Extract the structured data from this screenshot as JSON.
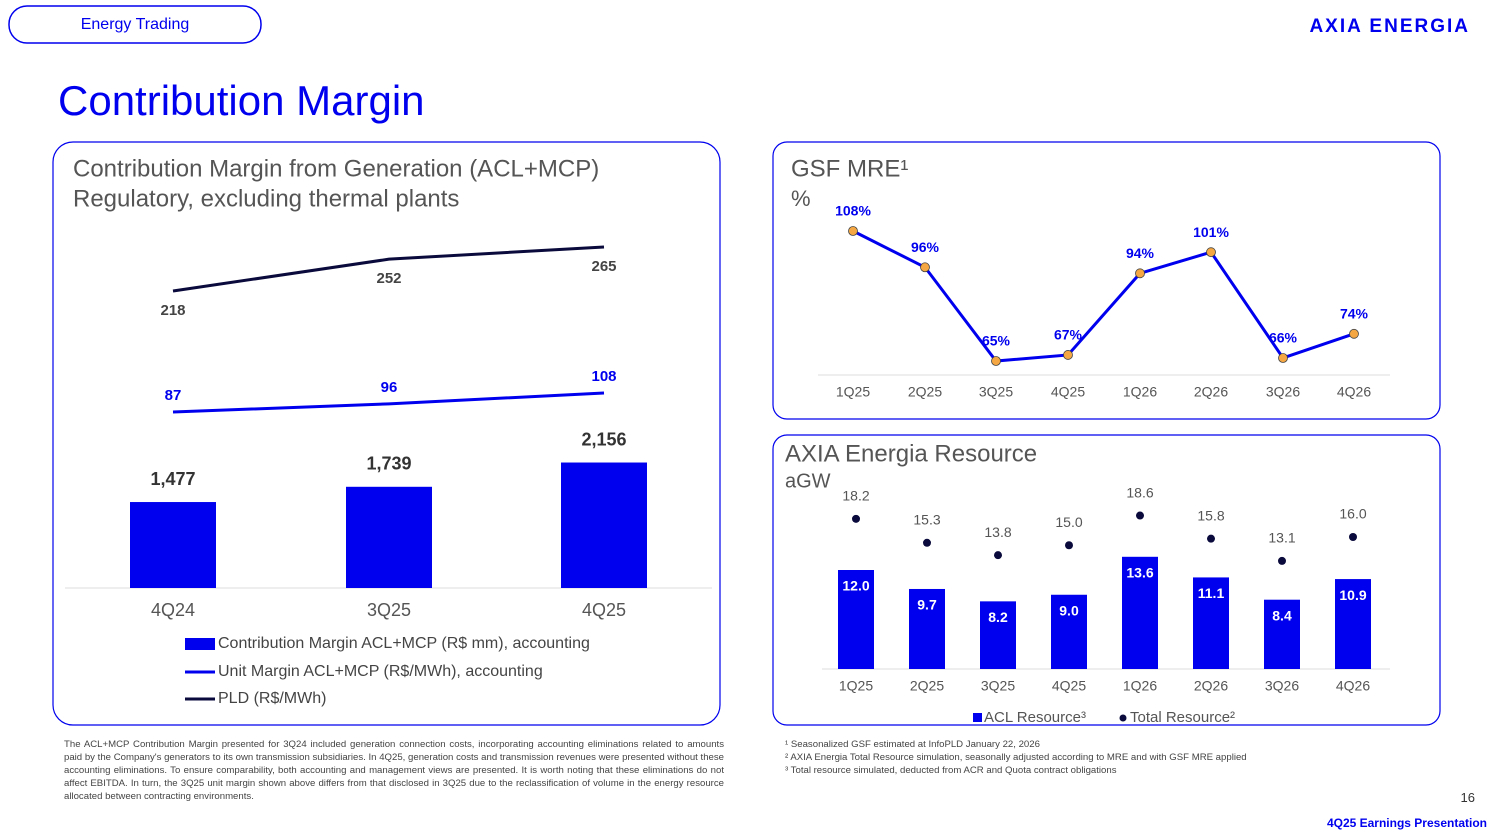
{
  "header": {
    "tag": "Energy Trading",
    "logo": "AXIA ENERGIA",
    "title": "Contribution Margin"
  },
  "chart_data": [
    {
      "type": "bar",
      "title": "Contribution Margin from Generation (ACL+MCP)",
      "subtitle": "Regulatory, excluding thermal plants",
      "categories": [
        "4Q24",
        "3Q25",
        "4Q25"
      ],
      "series": [
        {
          "name": "Contribution Margin ACL+MCP (R$ mm), accounting",
          "type": "bar",
          "color": "#0000ee",
          "values": [
            1477,
            1739,
            2156
          ],
          "value_labels": [
            "1,477",
            "1,739",
            "2,156"
          ]
        },
        {
          "name": "Unit Margin ACL+MCP (R$/MWh), accounting",
          "type": "line",
          "color": "#0000ee",
          "values": [
            87,
            96,
            108
          ]
        },
        {
          "name": "PLD (R$/MWh)",
          "type": "line",
          "color": "#0a0a3c",
          "values": [
            218,
            252,
            265
          ]
        }
      ]
    },
    {
      "type": "line",
      "title": "GSF MRE¹",
      "subtitle": "%",
      "categories": [
        "1Q25",
        "2Q25",
        "3Q25",
        "4Q25",
        "1Q26",
        "2Q26",
        "3Q26",
        "4Q26"
      ],
      "series": [
        {
          "color": "#0000ee",
          "marker_color": "#f4a742",
          "values": [
            108,
            96,
            65,
            67,
            94,
            101,
            66,
            74
          ],
          "value_labels": [
            "108%",
            "96%",
            "65%",
            "67%",
            "94%",
            "101%",
            "66%",
            "74%"
          ]
        }
      ]
    },
    {
      "type": "bar",
      "title": "AXIA Energia Resource",
      "subtitle": "aGW",
      "categories": [
        "1Q25",
        "2Q25",
        "3Q25",
        "4Q25",
        "1Q26",
        "2Q26",
        "3Q26",
        "4Q26"
      ],
      "series": [
        {
          "name": "ACL Resource³",
          "type": "bar",
          "color": "#0000ee",
          "values": [
            12.0,
            9.7,
            8.2,
            9.0,
            13.6,
            11.1,
            8.4,
            10.9
          ],
          "value_labels": [
            "12.0",
            "9.7",
            "8.2",
            "9.0",
            "13.6",
            "11.1",
            "8.4",
            "10.9"
          ]
        },
        {
          "name": "Total Resource²",
          "type": "scatter",
          "color": "#0a0a3c",
          "values": [
            18.2,
            15.3,
            13.8,
            15.0,
            18.6,
            15.8,
            13.1,
            16.0
          ],
          "value_labels": [
            "18.2",
            "15.3",
            "13.8",
            "15.0",
            "18.6",
            "15.8",
            "13.1",
            "16.0"
          ]
        }
      ]
    }
  ],
  "notes": {
    "left": "The ACL+MCP Contribution Margin presented for 3Q24 included generation connection costs, incorporating accounting eliminations related to amounts paid by the Company's generators to its own transmission subsidiaries. In 4Q25, generation costs and transmission revenues were presented without these accounting eliminations. To ensure comparability, both accounting and management views are presented. It is worth noting that these eliminations do not affect EBITDA. In turn, the 3Q25 unit margin shown above differs from that disclosed in 3Q25 due to the reclassification of volume in the energy resource allocated between contracting environments.",
    "right": [
      "¹ Seasonalized GSF estimated at InfoPLD January 22, 2026",
      "² AXIA Energia Total Resource simulation, seasonally adjusted according to MRE and with GSF MRE applied",
      "³ Total resource simulated, deducted from ACR and Quota contract obligations"
    ]
  },
  "footer": {
    "page": "16",
    "label": "4Q25 Earnings Presentation"
  }
}
